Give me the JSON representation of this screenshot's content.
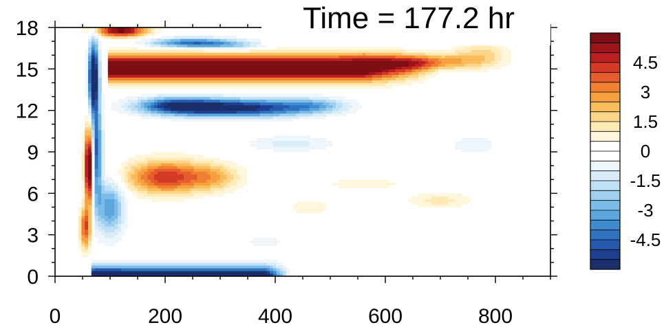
{
  "chart_data": {
    "type": "heatmap",
    "title": "Time = 177.2 hr",
    "xlabel": "",
    "ylabel": "",
    "xlim": [
      0,
      900
    ],
    "ylim": [
      0,
      18
    ],
    "x_ticks": [
      0,
      200,
      400,
      600,
      800
    ],
    "x_tick_labels": [
      "0",
      "200",
      "400",
      "600",
      "800"
    ],
    "y_ticks": [
      0,
      3,
      6,
      9,
      12,
      15,
      18
    ],
    "y_tick_labels": [
      "0",
      "3",
      "6",
      "9",
      "12",
      "15",
      "18"
    ],
    "colorbar": {
      "range": [
        -6,
        6
      ],
      "levels": [
        -5.5,
        -5,
        -4.5,
        -4,
        -3.5,
        -3,
        -2.5,
        -2,
        -1.5,
        -1,
        -0.5,
        0,
        0.5,
        1,
        1.5,
        2,
        2.5,
        3,
        3.5,
        4,
        4.5,
        5,
        5.5
      ],
      "colors": [
        "#1a2f6b",
        "#1d3f8f",
        "#2459ad",
        "#2f72c0",
        "#3f8dcf",
        "#5aa6dd",
        "#7cbce6",
        "#9fd0ef",
        "#bfe0f5",
        "#d8ecf9",
        "#eef6fc",
        "#ffffff",
        "#ffffff",
        "#fff6dc",
        "#ffe9b5",
        "#fdd588",
        "#fbbd5c",
        "#f7a040",
        "#f07f32",
        "#e65c2b",
        "#d53a26",
        "#bb1f22",
        "#9c1519",
        "#7d0f14"
      ],
      "labels": [
        "4.5",
        "3",
        "1.5",
        "0",
        "-1.5",
        "-3",
        "-4.5"
      ],
      "label_values": [
        4.5,
        3,
        1.5,
        0,
        -1.5,
        -3,
        -4.5
      ]
    },
    "features": [
      {
        "name": "upper positive jet",
        "x": [
          95,
          560
        ],
        "y": [
          14.3,
          16.2
        ],
        "value": 6
      },
      {
        "name": "upper positive jet tail",
        "x": [
          560,
          730
        ],
        "y": [
          15.0,
          16.0
        ],
        "value": 2.8
      },
      {
        "name": "upper negative band",
        "x": [
          150,
          500
        ],
        "y": [
          11.6,
          13.0
        ],
        "value": -5
      },
      {
        "name": "top negative band",
        "x": [
          150,
          380
        ],
        "y": [
          16.6,
          17.3
        ],
        "value": -4
      },
      {
        "name": "top positive cap",
        "x": [
          80,
          220
        ],
        "y": [
          17.3,
          18
        ],
        "value": 5.5
      },
      {
        "name": "mid positive lobe",
        "x": [
          115,
          320
        ],
        "y": [
          5.9,
          8.6
        ],
        "value": 3.8
      },
      {
        "name": "vertical negative front",
        "x": [
          60,
          80
        ],
        "y": [
          3,
          17
        ],
        "value": -5.5
      },
      {
        "name": "vertical positive front",
        "x": [
          55,
          75
        ],
        "y": [
          4.5,
          11
        ],
        "value": 5.5
      },
      {
        "name": "surface negative layer",
        "x": [
          70,
          420
        ],
        "y": [
          0,
          1.2
        ],
        "value": -5.5
      }
    ]
  }
}
